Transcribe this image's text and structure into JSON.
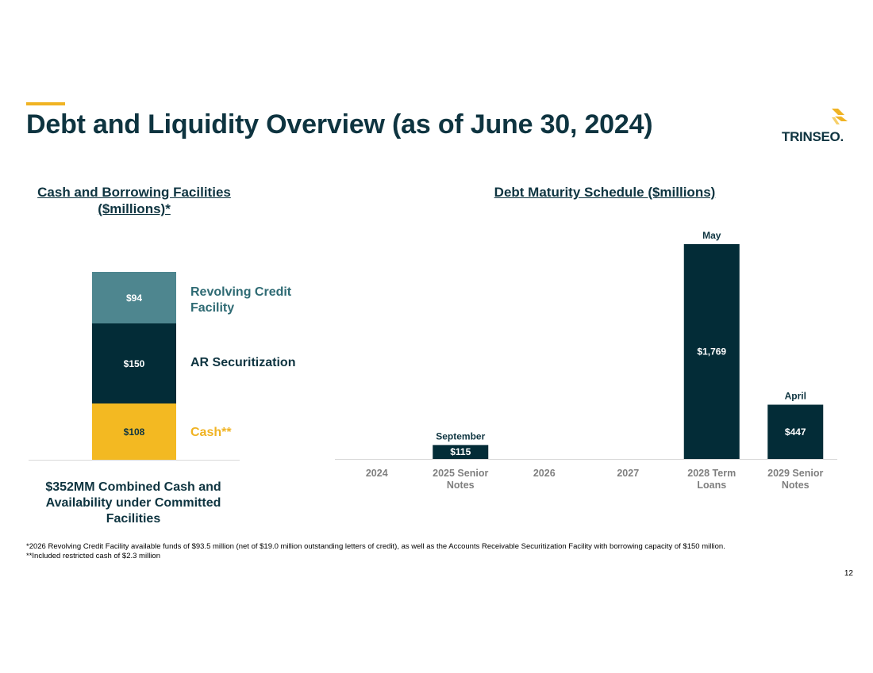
{
  "header": {
    "title": "Debt and Liquidity Overview (as of June 30, 2024)",
    "logo_text": "TRINSEO."
  },
  "colors": {
    "dark_teal": "#032c37",
    "gold": "#f3b922",
    "teal": "#4e868f",
    "title": "#0e3440"
  },
  "left_panel": {
    "title": "Cash and Borrowing Facilities ($millions)*",
    "summary": "$352MM Combined Cash and Availability under Committed Facilities"
  },
  "right_panel": {
    "title": "Debt Maturity Schedule ($millions)"
  },
  "chart_data": [
    {
      "type": "bar",
      "title": "Cash and Borrowing Facilities ($millions)*",
      "stacked": true,
      "categories": [
        ""
      ],
      "series": [
        {
          "name": "Cash**",
          "values": [
            108
          ],
          "label": "$108"
        },
        {
          "name": "AR Securitization",
          "values": [
            150
          ],
          "label": "$150"
        },
        {
          "name": "Revolving Credit Facility",
          "values": [
            94
          ],
          "label": "$94"
        }
      ],
      "total": 352
    },
    {
      "type": "bar",
      "title": "Debt Maturity Schedule ($millions)",
      "categories": [
        "2024",
        "2025 Senior Notes",
        "2026",
        "2027",
        "2028 Term Loans",
        "2029 Senior Notes"
      ],
      "values": [
        0,
        115,
        0,
        0,
        1769,
        447
      ],
      "value_labels": [
        "",
        "$115",
        "",
        "",
        "$1,769",
        "$447"
      ],
      "month_labels": [
        "",
        "September",
        "",
        "",
        "May",
        "April"
      ],
      "xlabel": "",
      "ylabel": "",
      "grid": false
    }
  ],
  "footnotes": [
    "*2026 Revolving Credit Facility available funds of $93.5 million (net of $19.0 million outstanding letters of credit), as well as the Accounts Receivable Securitization Facility with borrowing capacity of $150 million.",
    "**Included restricted cash of $2.3 million"
  ],
  "page_number": "12"
}
